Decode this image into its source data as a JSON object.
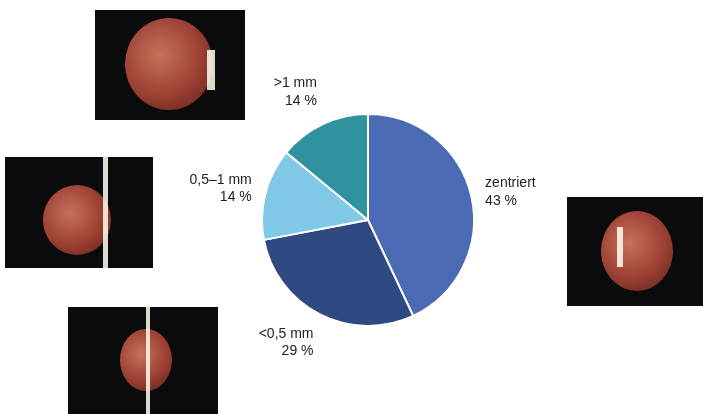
{
  "chart_data": {
    "type": "pie",
    "categories": [
      "zentriert",
      "<0,5 mm",
      "0,5–1 mm",
      ">1 mm"
    ],
    "values": [
      43,
      29,
      14,
      14
    ],
    "value_labels": [
      "43 %",
      "29 %",
      "14 %",
      "14 %"
    ],
    "colors": [
      "#4a6bb3",
      "#2f4a82",
      "#7fc8e6",
      "#2e929f"
    ],
    "data_labels": true
  }
}
